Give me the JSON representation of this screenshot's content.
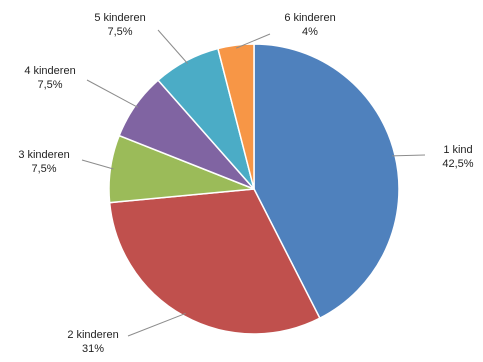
{
  "chart_data": {
    "type": "pie",
    "title": "",
    "slices": [
      {
        "label": "1 kind",
        "value": 42.5,
        "display_value": "42,5%",
        "color": "#4F81BD"
      },
      {
        "label": "2 kinderen",
        "value": 31,
        "display_value": "31%",
        "color": "#C0504D"
      },
      {
        "label": "3 kinderen",
        "value": 7.5,
        "display_value": "7,5%",
        "color": "#9BBB59"
      },
      {
        "label": "4 kinderen",
        "value": 7.5,
        "display_value": "7,5%",
        "color": "#8064A2"
      },
      {
        "label": "5 kinderen",
        "value": 7.5,
        "display_value": "7,5%",
        "color": "#4BACC6"
      },
      {
        "label": "6 kinderen",
        "value": 4,
        "display_value": "4%",
        "color": "#F79646"
      }
    ],
    "start_angle": "12 o'clock",
    "direction": "clockwise",
    "legend": "none",
    "data_labels": "outside with leader lines"
  }
}
